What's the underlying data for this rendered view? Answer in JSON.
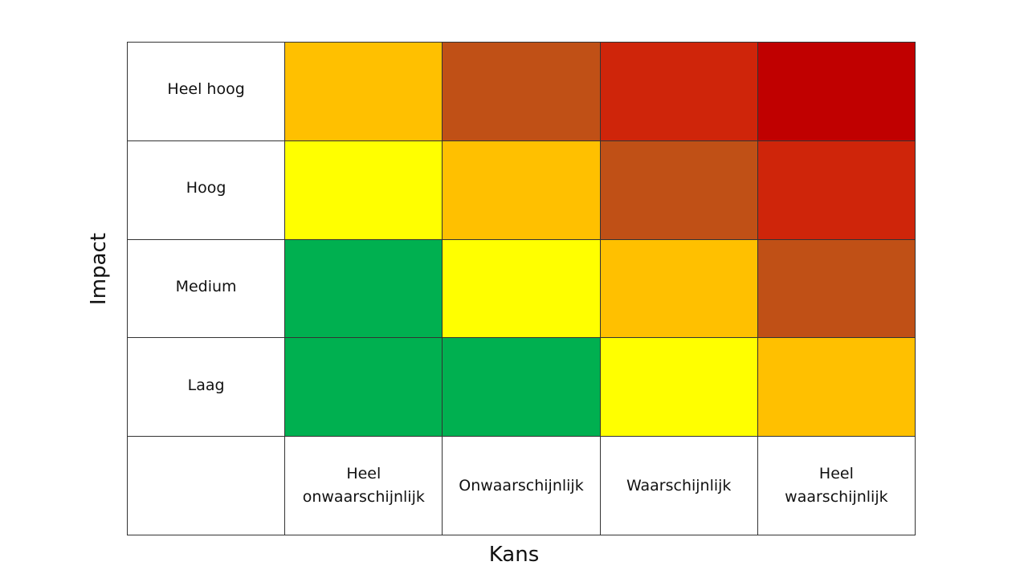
{
  "axes": {
    "x_label": "Kans",
    "y_label": "Impact"
  },
  "impact_levels": [
    "Heel hoog",
    "Hoog",
    "Medium",
    "Laag"
  ],
  "likelihood_levels": [
    "Heel\nonwaarschijnlijk",
    "Onwaarschijnlijk",
    "Waarschijnlijk",
    "Heel\nwaarschijnlijk"
  ],
  "colors": {
    "green": "#00B050",
    "yellow": "#FFFF00",
    "orange": "#FFC000",
    "brown": "#C05016",
    "red": "#CF250A",
    "dark_red": "#C00000"
  },
  "matrix": [
    [
      "orange",
      "brown",
      "red",
      "dark_red"
    ],
    [
      "yellow",
      "orange",
      "brown",
      "red"
    ],
    [
      "green",
      "yellow",
      "orange",
      "brown"
    ],
    [
      "green",
      "green",
      "yellow",
      "orange"
    ]
  ]
}
